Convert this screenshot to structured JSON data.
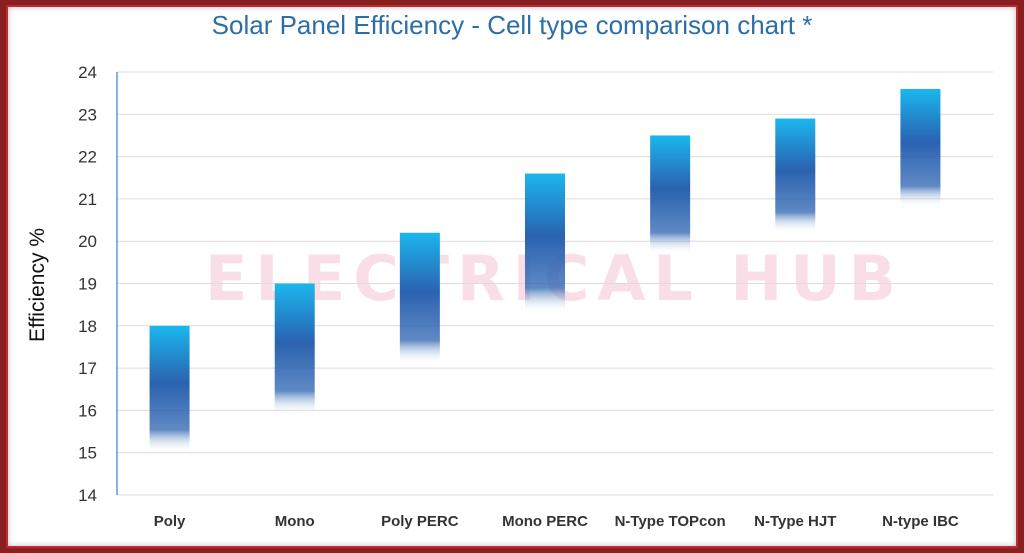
{
  "chart_data": {
    "type": "bar",
    "title": "Solar Panel Efficiency - Cell type comparison chart *",
    "ylabel": "Efficiency %",
    "xlabel": "",
    "ylim": [
      14,
      24
    ],
    "yticks": [
      14,
      15,
      16,
      17,
      18,
      19,
      20,
      21,
      22,
      23,
      24
    ],
    "grid": true,
    "categories": [
      "Poly",
      "Mono",
      "Poly PERC",
      "Mono PERC",
      "N-Type TOPcon",
      "N-Type HJT",
      "N-type IBC"
    ],
    "ranges": [
      {
        "low": 15,
        "high": 18
      },
      {
        "low": 15.9,
        "high": 19
      },
      {
        "low": 17.1,
        "high": 20.2
      },
      {
        "low": 18.3,
        "high": 21.6
      },
      {
        "low": 19.7,
        "high": 22.5
      },
      {
        "low": 20.2,
        "high": 22.9
      },
      {
        "low": 20.8,
        "high": 23.6
      }
    ],
    "bar_colors": {
      "top": "#1ab7ee",
      "mid": "#2a62b0",
      "bottom": "#ffffff"
    }
  },
  "watermark": "ELECTRICAL HUB"
}
